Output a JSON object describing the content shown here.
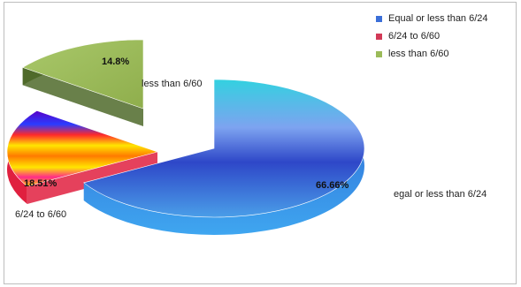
{
  "chart_data": {
    "type": "pie",
    "title": "",
    "categories": [
      "Equal or less than 6/24",
      "6/24 to 6/60",
      "less than 6/60"
    ],
    "values": [
      66.66,
      18.51,
      14.8
    ],
    "data_labels": [
      "66.66%",
      "18.51%",
      "14.8%"
    ],
    "category_labels": [
      "egal or less than 6/24",
      "6/24 to 6/60",
      "less than 6/60"
    ],
    "legend": {
      "position": "top-right",
      "entries": [
        "Equal or less than 6/24",
        "6/24 to 6/60",
        "less than 6/60"
      ]
    },
    "colors": [
      "#3b6fd8",
      "#d23a57",
      "#9bbb59"
    ],
    "style": "3d-exploded",
    "grid": false
  }
}
